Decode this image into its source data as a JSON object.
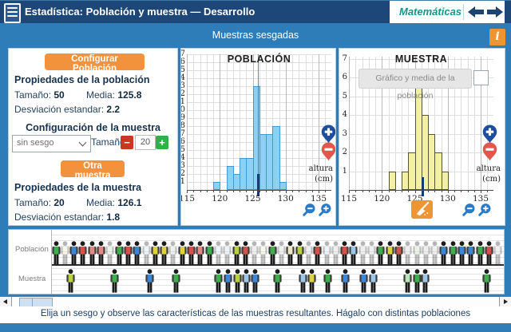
{
  "header": {
    "title": "Estadística: Población y muestra  —  Desarrollo",
    "brand": "Matemáticas",
    "menu_icon": "hamburger-icon",
    "back_icon": "left-arrow-icon",
    "forward_icon": "right-arrow-icon"
  },
  "subheader": {
    "title": "Muestras sesgadas",
    "info_label": "i"
  },
  "config_panel": {
    "configure_button": "Configurar Población",
    "population_props": {
      "heading": "Propiedades de la población",
      "size_label": "Tamaño:",
      "size": "50",
      "mean_label": "Media:",
      "mean": "125.8",
      "sd_label": "Desviación estandar:",
      "sd": "2.2"
    },
    "sample_config": {
      "heading": "Configuración de la muestra",
      "bias_selected": "sin sesgo",
      "size_label": "Tamaño:",
      "minus_label": "−",
      "size_value": "20",
      "plus_label": "+"
    },
    "resample_button": "Otra muestra",
    "sample_props": {
      "heading": "Propiedades de la muestra",
      "size_label": "Tamaño:",
      "size": "20",
      "mean_label": "Media:",
      "mean": "126.1",
      "sd_label": "Desviación estandar:",
      "sd": "1.8"
    }
  },
  "chart_data": [
    {
      "type": "bar",
      "title": "POBLACIÓN",
      "xlabel_lines": [
        "altura",
        "(cm)"
      ],
      "x_ticks": [
        115,
        120,
        125,
        130,
        135
      ],
      "xlim": [
        115,
        136.9
      ],
      "ylim": [
        0,
        17.7
      ],
      "y_label_max": 17,
      "grid": true,
      "bin_width": 1,
      "bins": [
        {
          "x": 119,
          "count": 1
        },
        {
          "x": 121,
          "count": 3
        },
        {
          "x": 122,
          "count": 2
        },
        {
          "x": 123,
          "count": 4
        },
        {
          "x": 124,
          "count": 4
        },
        {
          "x": 125,
          "count": 13
        },
        {
          "x": 126,
          "count": 7
        },
        {
          "x": 127,
          "count": 7
        },
        {
          "x": 128,
          "count": 8
        },
        {
          "x": 129,
          "count": 1
        }
      ],
      "mean": 125.8,
      "bar_fill": "#8ed0f0",
      "bar_border": "#3d9ad2"
    },
    {
      "type": "bar",
      "title": "MUESTRA",
      "xlabel_lines": [
        "altura",
        "(cm)"
      ],
      "x_ticks": [
        115,
        120,
        125,
        130,
        135
      ],
      "xlim": [
        115,
        136.9
      ],
      "ylim": [
        0,
        7.1
      ],
      "y_label_max": 7,
      "grid": true,
      "bin_width": 1,
      "bins": [
        {
          "x": 121,
          "count": 1
        },
        {
          "x": 123,
          "count": 1
        },
        {
          "x": 124,
          "count": 2
        },
        {
          "x": 125,
          "count": 6
        },
        {
          "x": 126,
          "count": 4
        },
        {
          "x": 127,
          "count": 3
        },
        {
          "x": 128,
          "count": 2
        },
        {
          "x": 129,
          "count": 1
        }
      ],
      "mean": 126.1,
      "bar_fill": "#f3f0a4",
      "bar_border": "#55553a"
    }
  ],
  "sample_overlay": {
    "checkbox_label": "Gráfico y media de la población",
    "checked": false
  },
  "people": {
    "poblacion_label": "Población",
    "muestra_label": "Muestra",
    "palette": {
      "g": "#3fae4c",
      "y": "#ddd23f",
      "Y": "#b9cf44",
      "r": "#d85148",
      "p": "#e28a84",
      "b": "#3d87d8",
      "l": "#9fc8e8",
      "G": "#bfe3bb",
      "P": "#ece9c0",
      "B": "#c6daee",
      "x": "#cfcfcf"
    },
    "population": [
      "g",
      "P!",
      "b",
      "r",
      "p",
      "p",
      "G!",
      "g",
      "r",
      "b",
      "B!",
      "y",
      "y",
      "x!",
      "y",
      "r",
      "p",
      "g",
      "B!",
      "B!",
      "Y",
      "r",
      "x!",
      "P!",
      "g",
      "x!",
      "P",
      "Y",
      "x!",
      "r",
      "B!",
      "x!",
      "r",
      "l",
      "x!",
      "x!",
      "g",
      "y",
      "r",
      "x!",
      "G!",
      "x!",
      "x!",
      "b",
      "g",
      "b",
      "b",
      "g",
      "r",
      "x!"
    ],
    "sample": [
      {
        "x": 76,
        "c": "Y"
      },
      {
        "x": 131,
        "c": "g"
      },
      {
        "x": 175,
        "c": "b"
      },
      {
        "x": 208,
        "c": "g"
      },
      {
        "x": 261,
        "c": "g"
      },
      {
        "x": 273,
        "c": "b"
      },
      {
        "x": 285,
        "c": "Y"
      },
      {
        "x": 296,
        "c": "l"
      },
      {
        "x": 307,
        "c": "b"
      },
      {
        "x": 335,
        "c": "g"
      },
      {
        "x": 367,
        "c": "l"
      },
      {
        "x": 378,
        "c": "y"
      },
      {
        "x": 398,
        "c": "g"
      },
      {
        "x": 420,
        "c": "b"
      },
      {
        "x": 443,
        "c": "b"
      },
      {
        "x": 455,
        "c": "l"
      },
      {
        "x": 498,
        "c": "G"
      },
      {
        "x": 510,
        "c": "g"
      },
      {
        "x": 520,
        "c": "l"
      },
      {
        "x": 597,
        "c": "g"
      }
    ]
  },
  "footer": {
    "instruction": "Elija un sesgo y observe las características de las muestras resultantes. Hágalo con distintas poblaciones"
  },
  "colors": {
    "header_bg": "#1c4778",
    "app_bg": "#2e7cb8",
    "accent_orange": "#f2923c",
    "brand_teal": "#12968a",
    "navy": "#1d4370",
    "minus_red": "#c8371f",
    "plus_green": "#2eb146",
    "pin_blue": "#1d4f9e",
    "pin_red": "#e2574c",
    "magnifier_blue": "#2a7cc9"
  }
}
